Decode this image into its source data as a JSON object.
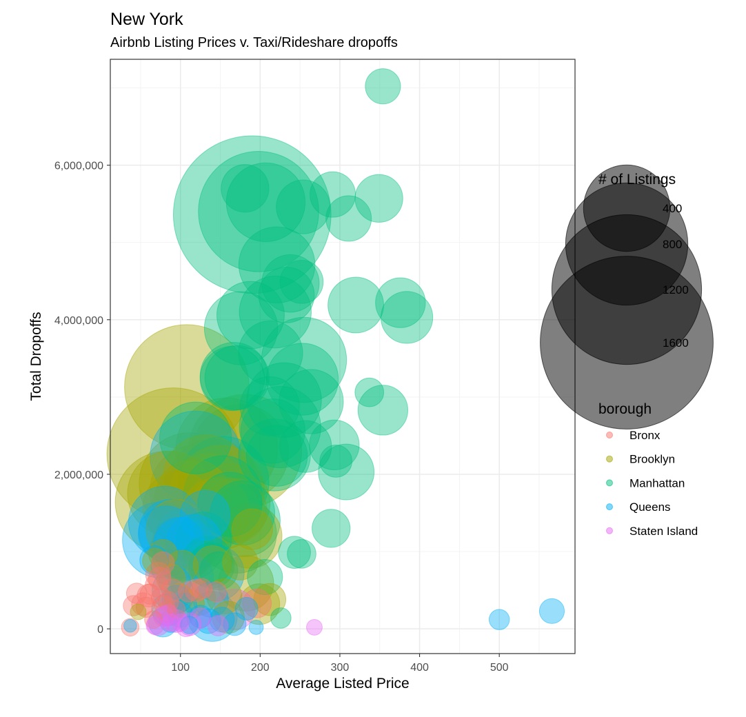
{
  "chart_data": {
    "type": "scatter",
    "title": "New York",
    "subtitle": "Airbnb Listing Prices v. Taxi/Rideshare dropoffs",
    "xlabel": "Average Listed Price",
    "ylabel": "Total Dropoffs",
    "xlim": [
      12,
      595
    ],
    "ylim": [
      -320000,
      7370000
    ],
    "x_ticks": [
      100,
      200,
      300,
      400,
      500
    ],
    "x_tick_labels": [
      "100",
      "200",
      "300",
      "400",
      "500"
    ],
    "y_ticks": [
      0,
      2000000,
      4000000,
      6000000
    ],
    "y_tick_labels": [
      "0",
      "2,000,000",
      "4,000,000",
      "6,000,000"
    ],
    "grid": true,
    "legend_position": "right",
    "size_legend": {
      "title": "# of Listings",
      "entries": [
        {
          "label": "400",
          "value": 400
        },
        {
          "label": "800",
          "value": 800
        },
        {
          "label": "1200",
          "value": 1200
        },
        {
          "label": "1600",
          "value": 1600
        }
      ]
    },
    "color_legend": {
      "title": "borough",
      "entries": [
        {
          "label": "Bronx",
          "color": "#F8766D"
        },
        {
          "label": "Brooklyn",
          "color": "#A3A500"
        },
        {
          "label": "Manhattan",
          "color": "#00BF7D"
        },
        {
          "label": "Queens",
          "color": "#00B0F6"
        },
        {
          "label": "Staten Island",
          "color": "#E76BF3"
        }
      ]
    },
    "series": [
      {
        "name": "Bronx",
        "color": "#F8766D",
        "points": [
          [
            37,
            20000,
            15
          ],
          [
            41,
            300000,
            20
          ],
          [
            45,
            460000,
            20
          ],
          [
            53,
            320000,
            25
          ],
          [
            57,
            280000,
            20
          ],
          [
            60,
            430000,
            25
          ],
          [
            62,
            450000,
            20
          ],
          [
            66,
            120000,
            15
          ],
          [
            70,
            560000,
            25
          ],
          [
            72,
            700000,
            30
          ],
          [
            74,
            650000,
            25
          ],
          [
            76,
            400000,
            20
          ],
          [
            78,
            850000,
            25
          ],
          [
            80,
            300000,
            20
          ],
          [
            82,
            220000,
            20
          ],
          [
            85,
            350000,
            20
          ],
          [
            90,
            500000,
            25
          ],
          [
            95,
            250000,
            15
          ],
          [
            110,
            480000,
            20
          ],
          [
            120,
            500000,
            25
          ],
          [
            127,
            520000,
            20
          ],
          [
            145,
            480000,
            20
          ],
          [
            196,
            330000,
            40
          ]
        ]
      },
      {
        "name": "Brooklyn",
        "color": "#A3A500",
        "points": [
          [
            47,
            220000,
            12
          ],
          [
            68,
            880000,
            30
          ],
          [
            78,
            970000,
            40
          ],
          [
            82,
            1640000,
            500
          ],
          [
            87,
            1750000,
            350
          ],
          [
            91,
            2260000,
            850
          ],
          [
            95,
            1280000,
            180
          ],
          [
            98,
            1570000,
            250
          ],
          [
            103,
            1040000,
            200
          ],
          [
            108,
            3130000,
            750
          ],
          [
            112,
            1880000,
            500
          ],
          [
            116,
            1700000,
            280
          ],
          [
            120,
            1780000,
            420
          ],
          [
            125,
            1560000,
            450
          ],
          [
            132,
            1960000,
            350
          ],
          [
            136,
            1760000,
            300
          ],
          [
            141,
            1850000,
            420
          ],
          [
            145,
            1520000,
            220
          ],
          [
            150,
            1800000,
            380
          ],
          [
            154,
            1500000,
            250
          ],
          [
            158,
            2330000,
            500
          ],
          [
            163,
            1630000,
            300
          ],
          [
            168,
            1530000,
            200
          ],
          [
            175,
            2280000,
            450
          ],
          [
            181,
            2300000,
            620
          ],
          [
            187,
            1200000,
            200
          ],
          [
            190,
            1290000,
            80
          ],
          [
            175,
            860000,
            60
          ],
          [
            182,
            590000,
            150
          ],
          [
            199,
            320000,
            80
          ],
          [
            212,
            380000,
            50
          ],
          [
            155,
            420000,
            60
          ],
          [
            160,
            150000,
            50
          ],
          [
            122,
            400000,
            60
          ],
          [
            98,
            400000,
            40
          ],
          [
            112,
            320000,
            40
          ],
          [
            88,
            650000,
            40
          ],
          [
            102,
            810000,
            50
          ],
          [
            140,
            830000,
            70
          ]
        ]
      },
      {
        "name": "Manhattan",
        "color": "#00BF7D",
        "points": [
          [
            190,
            5360000,
            1200
          ],
          [
            198,
            5400000,
            700
          ],
          [
            207,
            5520000,
            300
          ],
          [
            181,
            5700000,
            110
          ],
          [
            254,
            5460000,
            140
          ],
          [
            291,
            5620000,
            100
          ],
          [
            311,
            5310000,
            100
          ],
          [
            349,
            5570000,
            110
          ],
          [
            354,
            7020000,
            60
          ],
          [
            221,
            4710000,
            280
          ],
          [
            238,
            4470000,
            160
          ],
          [
            252,
            4490000,
            90
          ],
          [
            233,
            4320000,
            150
          ],
          [
            188,
            4060000,
            220
          ],
          [
            219,
            4100000,
            250
          ],
          [
            176,
            3890000,
            260
          ],
          [
            320,
            4190000,
            150
          ],
          [
            376,
            4220000,
            120
          ],
          [
            384,
            4030000,
            130
          ],
          [
            213,
            3570000,
            200
          ],
          [
            255,
            3480000,
            350
          ],
          [
            253,
            3230000,
            250
          ],
          [
            165,
            3240000,
            200
          ],
          [
            167,
            3270000,
            220
          ],
          [
            171,
            3250000,
            200
          ],
          [
            212,
            2880000,
            170
          ],
          [
            230,
            2960000,
            270
          ],
          [
            264,
            2940000,
            200
          ],
          [
            337,
            3060000,
            40
          ],
          [
            354,
            2830000,
            120
          ],
          [
            119,
            2470000,
            250
          ],
          [
            216,
            2560000,
            200
          ],
          [
            225,
            2610000,
            320
          ],
          [
            218,
            2250000,
            250
          ],
          [
            221,
            2240000,
            180
          ],
          [
            257,
            2360000,
            130
          ],
          [
            293,
            2380000,
            120
          ],
          [
            295,
            2170000,
            50
          ],
          [
            308,
            2030000,
            150
          ],
          [
            154,
            1900000,
            400
          ],
          [
            162,
            1610000,
            200
          ],
          [
            171,
            1230000,
            300
          ],
          [
            180,
            1400000,
            250
          ],
          [
            129,
            1150000,
            150
          ],
          [
            134,
            880000,
            120
          ],
          [
            139,
            820000,
            100
          ],
          [
            148,
            750000,
            70
          ],
          [
            206,
            670000,
            60
          ],
          [
            243,
            990000,
            50
          ],
          [
            252,
            970000,
            40
          ],
          [
            289,
            1300000,
            70
          ],
          [
            226,
            140000,
            20
          ],
          [
            153,
            1730000,
            300
          ],
          [
            178,
            1500000,
            200
          ]
        ]
      },
      {
        "name": "Queens",
        "color": "#00B0F6",
        "points": [
          [
            37,
            40000,
            8
          ],
          [
            67,
            890000,
            40
          ],
          [
            75,
            1150000,
            280
          ],
          [
            80,
            1380000,
            250
          ],
          [
            82,
            1230000,
            150
          ],
          [
            88,
            1260000,
            200
          ],
          [
            98,
            1120000,
            120
          ],
          [
            104,
            1050000,
            180
          ],
          [
            110,
            1100000,
            250
          ],
          [
            117,
            1120000,
            150
          ],
          [
            119,
            2230000,
            400
          ],
          [
            131,
            1470000,
            120
          ],
          [
            145,
            720000,
            150
          ],
          [
            138,
            380000,
            60
          ],
          [
            113,
            660000,
            100
          ],
          [
            90,
            500000,
            80
          ],
          [
            95,
            380000,
            40
          ],
          [
            84,
            250000,
            50
          ],
          [
            78,
            80000,
            40
          ],
          [
            88,
            100000,
            25
          ],
          [
            125,
            160000,
            25
          ],
          [
            135,
            100000,
            30
          ],
          [
            140,
            160000,
            120
          ],
          [
            152,
            120000,
            30
          ],
          [
            168,
            60000,
            25
          ],
          [
            183,
            260000,
            25
          ],
          [
            195,
            20000,
            10
          ],
          [
            500,
            120000,
            20
          ],
          [
            566,
            230000,
            30
          ],
          [
            111,
            50000,
            15
          ],
          [
            105,
            300000,
            30
          ],
          [
            85,
            800000,
            60
          ],
          [
            100,
            180000,
            30
          ],
          [
            93,
            600000,
            50
          ]
        ]
      },
      {
        "name": "Staten Island",
        "color": "#E76BF3",
        "points": [
          [
            68,
            40000,
            15
          ],
          [
            72,
            60000,
            25
          ],
          [
            79,
            160000,
            20
          ],
          [
            85,
            180000,
            20
          ],
          [
            88,
            80000,
            15
          ],
          [
            95,
            100000,
            25
          ],
          [
            100,
            80000,
            15
          ],
          [
            107,
            30000,
            20
          ],
          [
            112,
            60000,
            25
          ],
          [
            125,
            140000,
            20
          ],
          [
            147,
            40000,
            20
          ],
          [
            168,
            250000,
            80
          ],
          [
            268,
            20000,
            12
          ]
        ]
      }
    ]
  }
}
